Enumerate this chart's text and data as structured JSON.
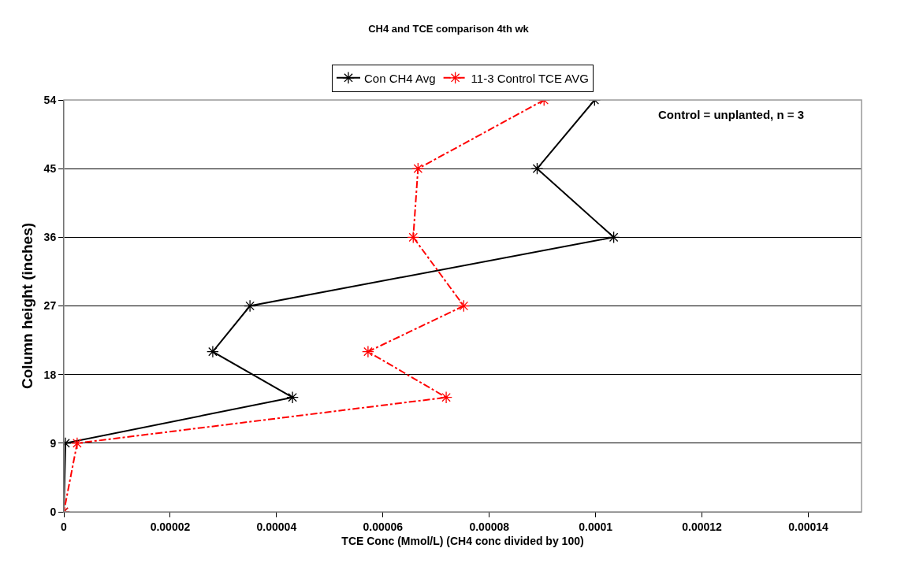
{
  "chart_data": {
    "type": "line",
    "title": "CH4 and TCE comparison 4th wk",
    "xlabel": "TCE Conc (Mmol/L) (CH4 conc divided by 100)",
    "ylabel": "Column height (inches)",
    "series": [
      {
        "name": "Con CH4 Avg",
        "color": "#000000",
        "line_style": "solid",
        "x": [
          9.98e-05,
          8.9e-05,
          0.0001034,
          3.5e-05,
          2.8e-05,
          4.3e-05,
          3e-07,
          0
        ],
        "values": [
          54,
          45,
          36,
          27,
          21,
          15,
          9,
          0
        ]
      },
      {
        "name": "11-3 Control TCE AVG",
        "color": "#ff0000",
        "line_style": "dashdot",
        "x": [
          9.03e-05,
          6.66e-05,
          6.57e-05,
          7.52e-05,
          5.72e-05,
          7.19e-05,
          2.5e-06,
          0
        ],
        "values": [
          54,
          45,
          36,
          27,
          21,
          15,
          9,
          0
        ]
      }
    ],
    "xlim": [
      0,
      0.00015
    ],
    "xticks": [
      0,
      {
        "value": 2e-05,
        "label": "0.00002"
      },
      {
        "value": 4e-05,
        "label": "0.00004"
      },
      {
        "value": 6e-05,
        "label": "0.00006"
      },
      {
        "value": 8e-05,
        "label": "0.00008"
      },
      0.0001,
      0.00012,
      0.00014
    ],
    "ylim": [
      0,
      54
    ],
    "yticks": [
      0,
      9,
      18,
      27,
      36,
      45,
      54
    ],
    "grid": "y",
    "legend": "top",
    "marker": "cross",
    "annotations": [
      "Control = unplanted, n = 3"
    ]
  }
}
